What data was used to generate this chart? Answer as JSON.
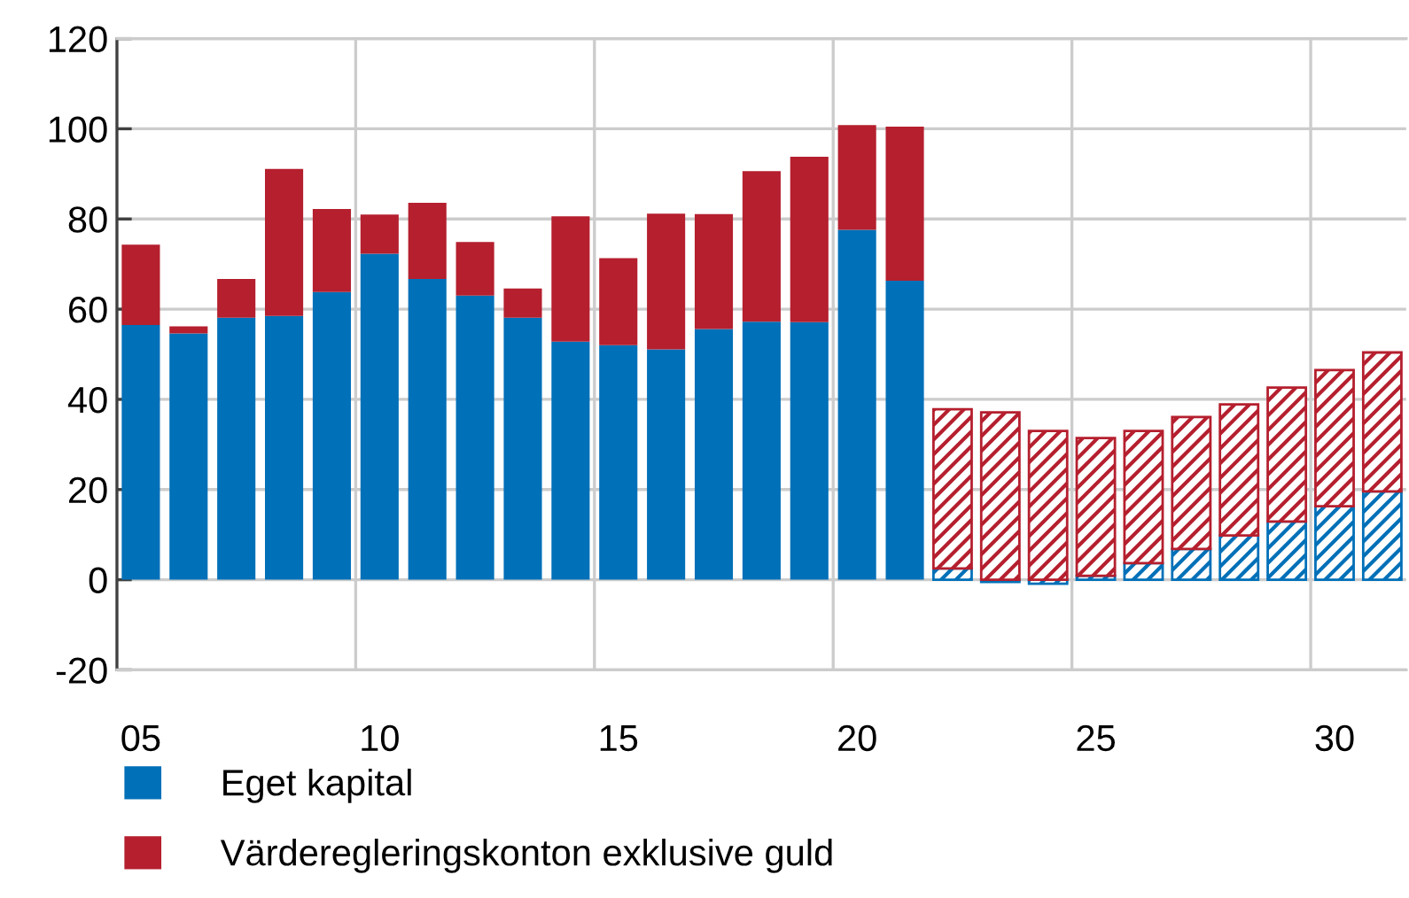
{
  "chart_data": {
    "type": "bar",
    "stacked": true,
    "x": [
      2005,
      2006,
      2007,
      2008,
      2009,
      2010,
      2011,
      2012,
      2013,
      2014,
      2015,
      2016,
      2017,
      2018,
      2019,
      2020,
      2021,
      2022,
      2023,
      2024,
      2025,
      2026,
      2027,
      2028,
      2029,
      2030,
      2031
    ],
    "series": [
      {
        "name": "Eget kapital",
        "color": "#0070b8",
        "values": [
          56.5,
          54.6,
          58.1,
          58.5,
          63.8,
          72.3,
          66.7,
          63.0,
          58.1,
          52.8,
          52.0,
          51.1,
          55.6,
          57.2,
          57.1,
          77.6,
          66.3,
          null,
          null,
          null,
          null,
          null,
          null,
          null,
          null,
          null,
          null
        ]
      },
      {
        "name": "Värderegleringskonton exklusive guld",
        "color": "#b51f2e",
        "values": [
          17.8,
          1.6,
          8.6,
          32.6,
          18.4,
          8.7,
          16.9,
          11.9,
          6.5,
          27.8,
          19.3,
          30.1,
          25.5,
          33.4,
          36.7,
          23.2,
          34.2,
          null,
          null,
          null,
          null,
          null,
          null,
          null,
          null,
          null,
          null
        ]
      },
      {
        "color": "#0070b8",
        "values": [
          null,
          null,
          null,
          null,
          null,
          null,
          null,
          null,
          null,
          null,
          null,
          null,
          null,
          null,
          null,
          null,
          null,
          2.5,
          -0.5,
          -0.9,
          0.9,
          3.7,
          6.8,
          9.8,
          12.9,
          16.3,
          19.6
        ]
      },
      {
        "color": "#b51f2e",
        "values": [
          null,
          null,
          null,
          null,
          null,
          null,
          null,
          null,
          null,
          null,
          null,
          null,
          null,
          null,
          null,
          null,
          null,
          35.3,
          37.1,
          33.0,
          30.5,
          29.3,
          29.3,
          29.1,
          29.7,
          30.2,
          30.8
        ]
      }
    ],
    "xlim": [
      2004.5,
      2031.5
    ],
    "xticks": [
      {
        "value": 2005,
        "label": "05"
      },
      {
        "value": 2010,
        "label": "10"
      },
      {
        "value": 2015,
        "label": "15"
      },
      {
        "value": 2020,
        "label": "20"
      },
      {
        "value": 2025,
        "label": "25"
      },
      {
        "value": 2030,
        "label": "30"
      }
    ],
    "ylim": [
      -20,
      120
    ],
    "yticks": [
      -20,
      0,
      20,
      40,
      60,
      80,
      100,
      120
    ],
    "ref_lines": [
      {
        "axis": "x",
        "value": 2009.5,
        "color": "#cccccc"
      },
      {
        "axis": "x",
        "value": 2014.5,
        "color": "#cccccc"
      },
      {
        "axis": "x",
        "value": 2019.5,
        "color": "#cccccc"
      },
      {
        "axis": "x",
        "value": 2024.5,
        "color": "#cccccc"
      },
      {
        "axis": "x",
        "value": 2029.5,
        "color": "#cccccc"
      }
    ],
    "grid": "y",
    "legend": "bottom"
  }
}
